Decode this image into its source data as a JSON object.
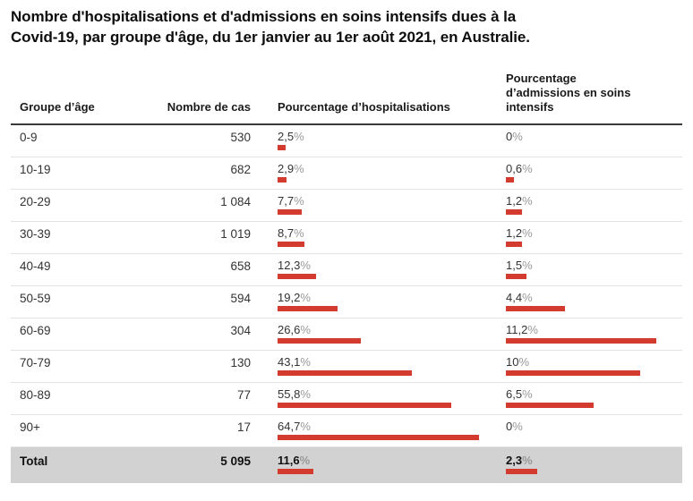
{
  "title_line1": "Nombre d'hospitalisations et d'admissions en soins intensifs dues à la",
  "title_line2": "Covid-19, par groupe d'âge, du 1er janvier au 1er août 2021, en Australie.",
  "colors": {
    "bar": "#d23b2d",
    "total_row_bg": "#d2d2d2",
    "header_border": "#3a3a3a",
    "row_border": "#e3e3e3",
    "percent_unit": "#999999"
  },
  "table": {
    "percent_unit": "%",
    "headers": [
      "Groupe d’âge",
      "Nombre de cas",
      "Pourcentage d’hospitalisations",
      "Pourcentage d’admissions en soins intensifs"
    ],
    "rows": [
      {
        "age": "0-9",
        "cases": "530",
        "hosp_label": "2,5",
        "hosp_value": 2.5,
        "icu_label": "0",
        "icu_value": 0
      },
      {
        "age": "10-19",
        "cases": "682",
        "hosp_label": "2,9",
        "hosp_value": 2.9,
        "icu_label": "0,6",
        "icu_value": 0.6
      },
      {
        "age": "20-29",
        "cases": "1 084",
        "hosp_label": "7,7",
        "hosp_value": 7.7,
        "icu_label": "1,2",
        "icu_value": 1.2
      },
      {
        "age": "30-39",
        "cases": "1 019",
        "hosp_label": "8,7",
        "hosp_value": 8.7,
        "icu_label": "1,2",
        "icu_value": 1.2
      },
      {
        "age": "40-49",
        "cases": "658",
        "hosp_label": "12,3",
        "hosp_value": 12.3,
        "icu_label": "1,5",
        "icu_value": 1.5
      },
      {
        "age": "50-59",
        "cases": "594",
        "hosp_label": "19,2",
        "hosp_value": 19.2,
        "icu_label": "4,4",
        "icu_value": 4.4
      },
      {
        "age": "60-69",
        "cases": "304",
        "hosp_label": "26,6",
        "hosp_value": 26.6,
        "icu_label": "11,2",
        "icu_value": 11.2
      },
      {
        "age": "70-79",
        "cases": "130",
        "hosp_label": "43,1",
        "hosp_value": 43.1,
        "icu_label": "10",
        "icu_value": 10
      },
      {
        "age": "80-89",
        "cases": "77",
        "hosp_label": "55,8",
        "hosp_value": 55.8,
        "icu_label": "6,5",
        "icu_value": 6.5
      },
      {
        "age": "90+",
        "cases": "17",
        "hosp_label": "64,7",
        "hosp_value": 64.7,
        "icu_label": "0",
        "icu_value": 0
      }
    ],
    "total": {
      "age": "Total",
      "cases": "5 095",
      "hosp_label": "11,6",
      "hosp_value": 11.6,
      "icu_label": "2,3",
      "icu_value": 2.3
    }
  },
  "chart_data": {
    "type": "table",
    "title": "Nombre d'hospitalisations et d'admissions en soins intensifs dues à la Covid-19, par groupe d'âge, du 1er janvier au 1er août 2021, en Australie.",
    "categories": [
      "0-9",
      "10-19",
      "20-29",
      "30-39",
      "40-49",
      "50-59",
      "60-69",
      "70-79",
      "80-89",
      "90+",
      "Total"
    ],
    "series": [
      {
        "name": "Nombre de cas",
        "values": [
          530,
          682,
          1084,
          1019,
          658,
          594,
          304,
          130,
          77,
          17,
          5095
        ]
      },
      {
        "name": "Pourcentage d'hospitalisations",
        "unit": "%",
        "values": [
          2.5,
          2.9,
          7.7,
          8.7,
          12.3,
          19.2,
          26.6,
          43.1,
          55.8,
          64.7,
          11.6
        ]
      },
      {
        "name": "Pourcentage d'admissions en soins intensifs",
        "unit": "%",
        "values": [
          0,
          0.6,
          1.2,
          1.2,
          1.5,
          4.4,
          11.2,
          10,
          6.5,
          0,
          2.3
        ]
      }
    ],
    "layout_hints": {
      "bars": "horizontal red bars under each percentage label, scaled per column to column max",
      "grid": "horizontal row separators only",
      "total_row_highlight": true
    }
  }
}
